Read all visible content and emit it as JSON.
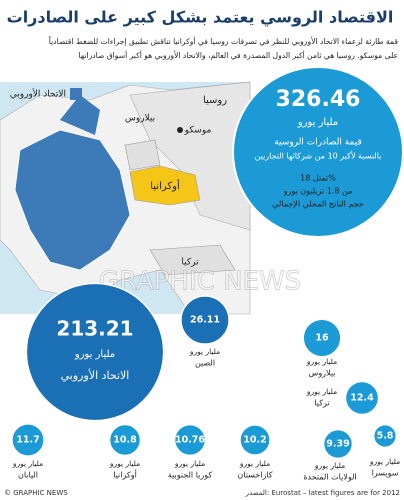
{
  "title": "الاقتصاد الروسي يعتمد بشكل كبير على الصادرات",
  "intro": [
    "قمة طارئة لزعماء الاتحاد الأوروبي للنظر في تصرفات روسيا في أوكرانيا تناقش تطبيق إجراءات للضغط اقتصادياً",
    "على موسكو. روسيا هي ثامن أكبر الدول المصدرة في العالم، والاتحاد الأوروبي هو أكبر أسواق صادراتها"
  ],
  "map": {
    "legend": "الاتحاد الأوروبي",
    "labels": [
      "روسيا",
      "بيلاروس",
      "موسكو",
      "أوكرانيا",
      "تركيا"
    ]
  },
  "russia": {
    "value": 326.46,
    "unit": "مليار يورو",
    "caption": [
      "قيمة الصادرات الروسية",
      "بالنسبة لأكبر 10 من شركائها التجاريين"
    ],
    "note": [
      "تمثل 18%",
      "من 1.8 تريليون يورو",
      "حجم الناتج المحلي الإجمالي"
    ]
  },
  "chart_data": {
    "type": "bubble",
    "unit": "مليار يورو",
    "categories": [
      "الاتحاد الأوروبي",
      "الصين",
      "بيلاروس",
      "تركيا",
      "اليابان",
      "أوكرانيا",
      "كوريا الجنوبية",
      "كازاخستان",
      "الولايات المتحدة",
      "سويسرا"
    ],
    "values": [
      213.21,
      26.11,
      16,
      12.4,
      11.7,
      10.8,
      10.76,
      10.2,
      9.39,
      5.8
    ]
  },
  "watermark": "GRAPHIC NEWS",
  "footer": {
    "credit": "© GRAPHIC NEWS",
    "source": "المصدر: Eurostat – latest figures are for 2012"
  }
}
